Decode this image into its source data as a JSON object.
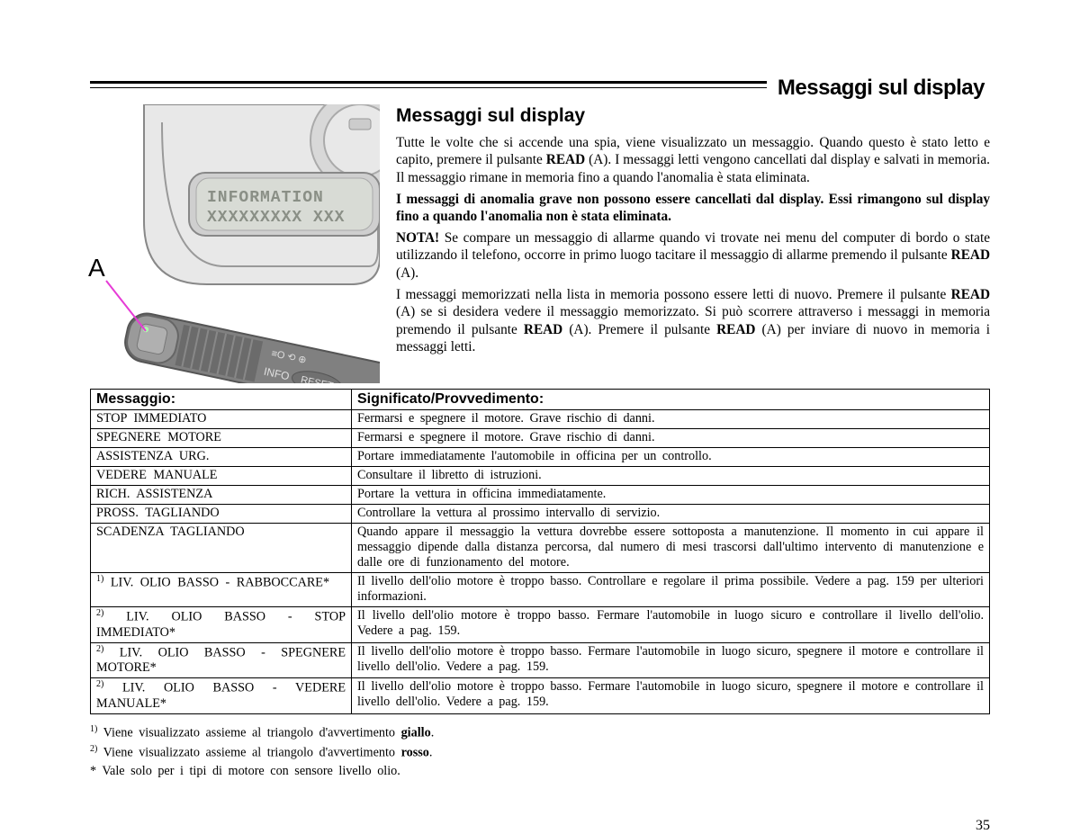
{
  "header": {
    "title": "Messaggi sul display"
  },
  "section": {
    "title": "Messaggi sul display"
  },
  "illustration": {
    "label": "A",
    "display_line1": "INFORMATION",
    "display_line2": "XXXXXXXXX  XXX",
    "stalk_info": "INFO",
    "stalk_reset": "RESET",
    "pointer_color": "#e63bd6"
  },
  "body": {
    "p1_a": "Tutte le volte che si accende una spia, viene visualizzato un messaggio. Quando questo è stato letto e capito, premere il pulsante ",
    "p1_b_bold": "READ",
    "p1_c": " (A). I messaggi letti vengono cancellati dal display e salvati in memoria. Il messaggio rimane in memoria fino a quando l'anomalia è stata eliminata.",
    "p2_bold": "I messaggi di anomalia grave non possono essere cancellati dal display. Essi rimangono sul display fino a quando l'anomalia non è stata eliminata.",
    "p3_nota": "NOTA!",
    "p3_a": " Se compare un messaggio di allarme quando vi trovate nei menu del computer di bordo o state utilizzando il telefono, occorre in primo luogo tacitare il messaggio di allarme premendo il pulsante ",
    "p3_b_bold": "READ",
    "p3_c": " (A).",
    "p4_a": "I messaggi memorizzati nella lista in memoria possono essere letti di nuovo. Premere il pulsante ",
    "p4_b_bold": "READ",
    "p4_c": " (A) se si desidera vedere il messaggio memorizzato. Si può scorrere attraverso i messaggi in memoria premendo il pulsante ",
    "p4_d_bold": "READ",
    "p4_e": " (A). Premere il pulsante ",
    "p4_f_bold": "READ",
    "p4_g": " (A) per inviare di nuovo in memoria i messaggi letti."
  },
  "table": {
    "col1": "Messaggio:",
    "col2": "Significato/Provvedimento:",
    "rows": [
      {
        "msg": "STOP   IMMEDIATO",
        "sig": "Fermarsi  e  spegnere  il  motore.  Grave  rischio  di  danni."
      },
      {
        "msg": "SPEGNERE   MOTORE",
        "sig": "Fermarsi  e  spegnere  il  motore.  Grave  rischio  di  danni."
      },
      {
        "msg": "ASSISTENZA   URG.",
        "sig": "Portare  immediatamente  l'automobile  in  officina  per  un  controllo."
      },
      {
        "msg": "VEDERE   MANUALE",
        "sig": "Consultare  il  libretto  di  istruzioni."
      },
      {
        "msg": "RICH.   ASSISTENZA",
        "sig": "Portare  la  vettura  in  officina  immediatamente."
      },
      {
        "msg": "PROSS.   TAGLIANDO",
        "sig": "Controllare  la  vettura  al  prossimo  intervallo  di  servizio."
      },
      {
        "msg": "SCADENZA   TAGLIANDO",
        "sig": "Quando appare il messaggio la vettura dovrebbe essere sottoposta a manutenzione. Il momento in cui appare il messaggio dipende dalla distanza percorsa, dal numero di mesi trascorsi dall'ultimo intervento di manutenzione  e  dalle  ore  di  funzionamento  del  motore."
      },
      {
        "sup": "1)",
        "msg": " LIV. OLIO BASSO - RABBOCCARE*",
        "sig": "Il livello dell'olio motore è troppo basso. Controllare e regolare il prima possibile. Vedere a pag. 159 per ulteriori informazioni."
      },
      {
        "sup": "2)",
        "msg": " LIV. OLIO BASSO - STOP IMMEDIATO*",
        "sig": "Il livello dell'olio motore è troppo basso. Fermare l'automobile in luogo sicuro e controllare il livello dell'olio. Vedere  a  pag.  159."
      },
      {
        "sup": "2)",
        "msg": " LIV. OLIO BASSO - SPEGNERE MOTORE*",
        "sig": "Il livello dell'olio motore è troppo basso. Fermare l'automobile in luogo sicuro, spegnere il motore e controllare il livello  dell'olio.  Vedere  a  pag.  159."
      },
      {
        "sup": "2)",
        "msg": " LIV. OLIO BASSO - VEDERE MANUALE*",
        "sig": "Il livello dell'olio motore è troppo basso. Fermare l'automobile in luogo sicuro, spegnere il motore e controllare il livello  dell'olio.  Vedere  a  pag.  159."
      }
    ]
  },
  "footnotes": {
    "f1_sup": "1)",
    "f1_a": " Viene  visualizzato  assieme  al  triangolo  d'avvertimento ",
    "f1_b_bold": "giallo",
    "f1_c": ".",
    "f2_sup": "2)",
    "f2_a": " Viene  visualizzato  assieme  al  triangolo  d'avvertimento ",
    "f2_b_bold": "rosso",
    "f2_c": ".",
    "f3": "* Vale  solo  per  i  tipi  di  motore  con  sensore  livello  olio."
  },
  "page_number": "35"
}
